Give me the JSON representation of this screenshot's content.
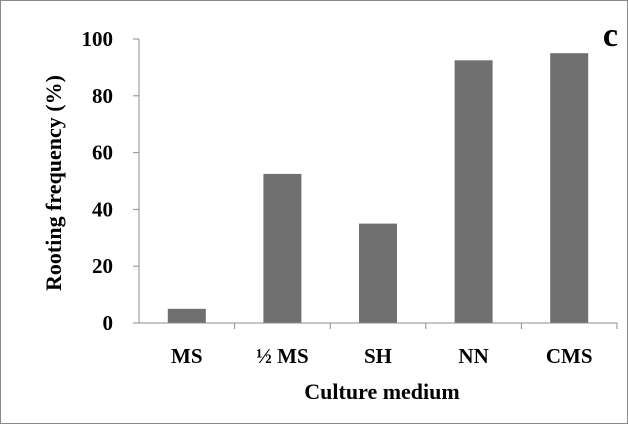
{
  "chart_data": {
    "type": "bar",
    "panel_label": "c",
    "xlabel": "Culture medium",
    "ylabel": "Rooting frequency (%)",
    "categories": [
      "MS",
      "½ MS",
      "SH",
      "NN",
      "CMS"
    ],
    "values": [
      5,
      52.5,
      35,
      92.5,
      95
    ],
    "ylim": [
      0,
      100
    ],
    "yticks": [
      0,
      20,
      40,
      60,
      80,
      100
    ],
    "grid": false,
    "legend": "none",
    "bar_color": "#707070",
    "axis_color": "#8c8c8c"
  }
}
